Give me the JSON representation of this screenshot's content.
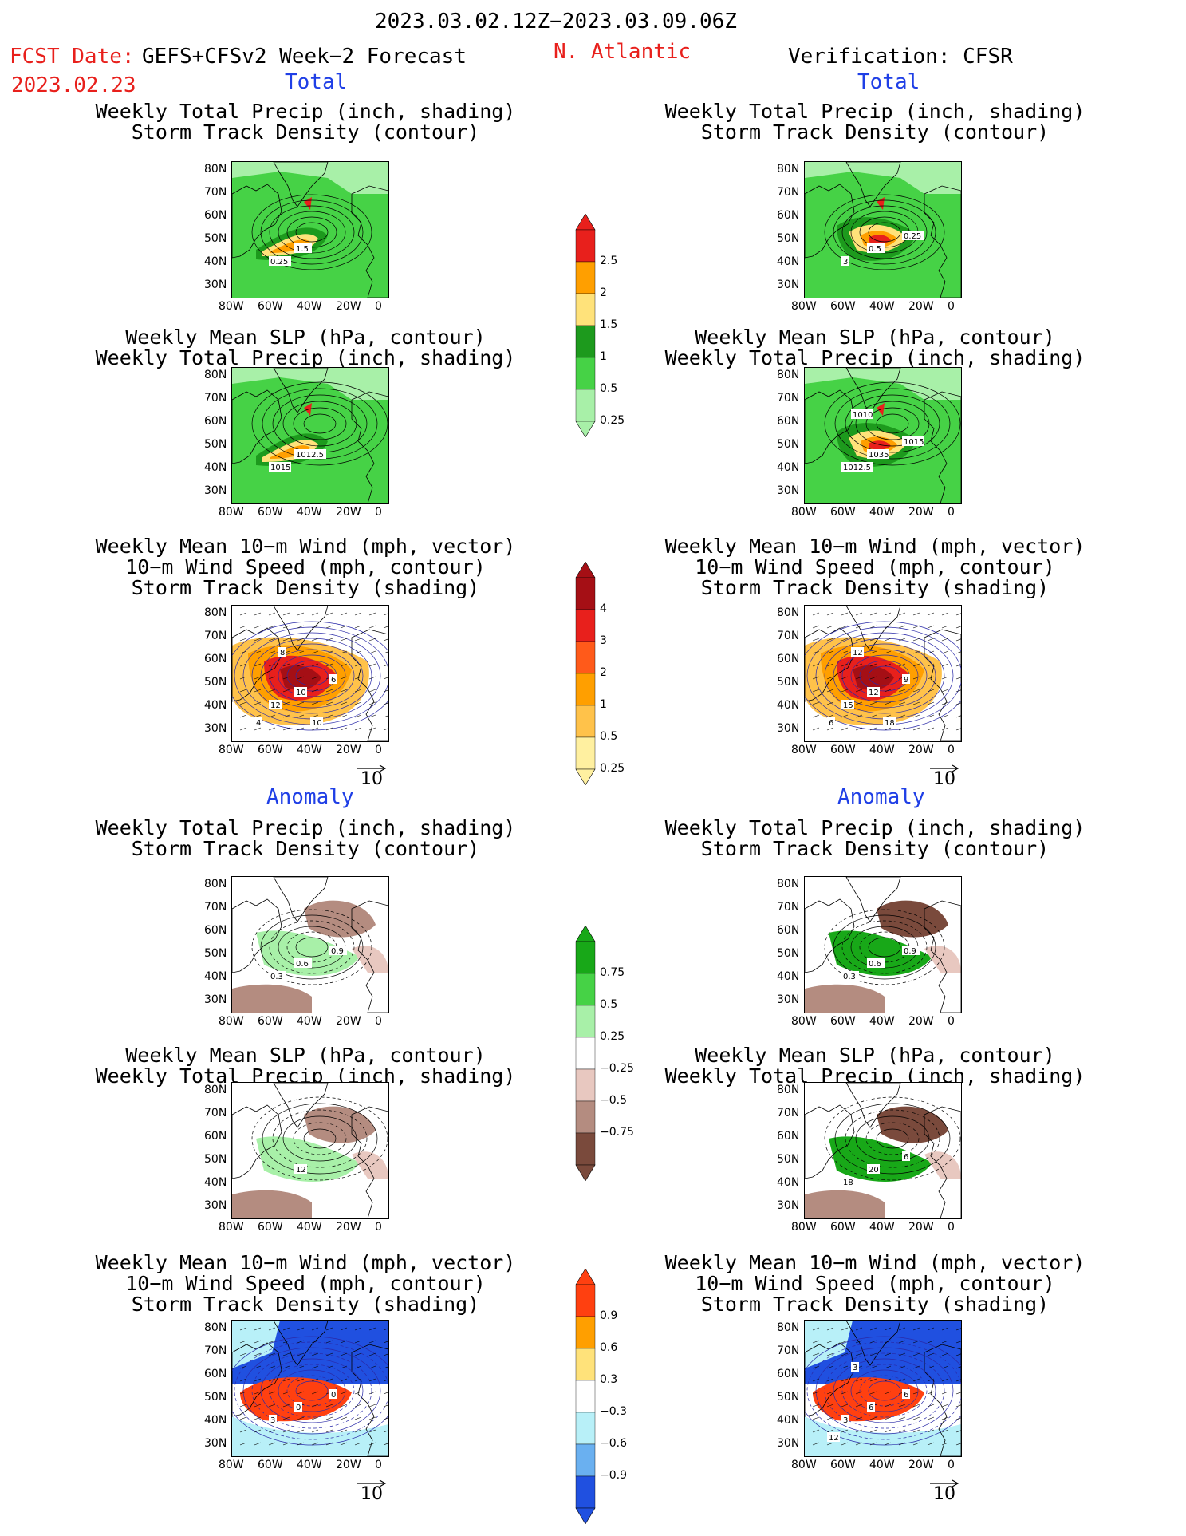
{
  "header": {
    "period": "2023.03.02.12Z−2023.03.09.06Z",
    "fcst_label": "FCST Date:",
    "fcst_model": "GEFS+CFSv2 Week−2 Forecast",
    "fcst_date": "2023.02.23",
    "region": "N. Atlantic",
    "verification": "Verification: CFSR"
  },
  "sections": {
    "total": "Total",
    "anomaly": "Anomaly"
  },
  "axes": {
    "lat_labels": [
      "80N",
      "70N",
      "60N",
      "50N",
      "40N",
      "30N"
    ],
    "lon_labels": [
      "80W",
      "60W",
      "40W",
      "20W",
      "0"
    ]
  },
  "vector_scale": "10",
  "panels": [
    {
      "id": "fcst-total-precip",
      "title": [
        "Weekly Total Precip (inch, shading)",
        "Storm Track Density (contour)"
      ],
      "labels": [
        "1.5",
        "0.25"
      ]
    },
    {
      "id": "verif-total-precip",
      "title": [
        "Weekly Total Precip (inch, shading)",
        "Storm Track Density (contour)"
      ],
      "labels": [
        "0.5",
        "3",
        "0.25"
      ]
    },
    {
      "id": "fcst-total-slp",
      "title": [
        "Weekly Mean SLP (hPa, contour)",
        "Weekly Total Precip (inch, shading)"
      ],
      "labels": [
        "1012.5",
        "1015"
      ]
    },
    {
      "id": "verif-total-slp",
      "title": [
        "Weekly Mean SLP (hPa, contour)",
        "Weekly Total Precip (inch, shading)"
      ],
      "labels": [
        "1035",
        "1012.5",
        "1015",
        "1010"
      ]
    },
    {
      "id": "fcst-total-wind",
      "title": [
        "Weekly Mean 10−m Wind (mph, vector)",
        "10−m Wind Speed (mph, contour)",
        "Storm Track Density (shading)"
      ],
      "labels": [
        "10",
        "12",
        "6",
        "8",
        "4",
        "10"
      ]
    },
    {
      "id": "verif-total-wind",
      "title": [
        "Weekly Mean 10−m Wind (mph, vector)",
        "10−m Wind Speed (mph, contour)",
        "Storm Track Density (shading)"
      ],
      "labels": [
        "12",
        "15",
        "9",
        "12",
        "6",
        "18"
      ]
    },
    {
      "id": "fcst-anom-precip",
      "title": [
        "Weekly Total Precip (inch, shading)",
        "Storm Track Density (contour)"
      ],
      "labels": [
        "0.6",
        "0.3",
        "0.9"
      ]
    },
    {
      "id": "verif-anom-precip",
      "title": [
        "Weekly Total Precip (inch, shading)",
        "Storm Track Density (contour)"
      ],
      "labels": [
        "0.6",
        "0.3",
        "0.9"
      ]
    },
    {
      "id": "fcst-anom-slp",
      "title": [
        "Weekly Mean SLP (hPa, contour)",
        "Weekly Total Precip (inch, shading)"
      ],
      "labels": [
        "12"
      ]
    },
    {
      "id": "verif-anom-slp",
      "title": [
        "Weekly Mean SLP (hPa, contour)",
        "Weekly Total Precip (inch, shading)"
      ],
      "labels": [
        "20",
        "18",
        "6"
      ]
    },
    {
      "id": "fcst-anom-wind",
      "title": [
        "Weekly Mean 10−m Wind (mph, vector)",
        "10−m Wind Speed (mph, contour)",
        "Storm Track Density (shading)"
      ],
      "labels": [
        "0",
        "3",
        "0"
      ]
    },
    {
      "id": "verif-anom-wind",
      "title": [
        "Weekly Mean 10−m Wind (mph, vector)",
        "10−m Wind Speed (mph, contour)",
        "Storm Track Density (shading)"
      ],
      "labels": [
        "6",
        "3",
        "6",
        "3",
        "12"
      ]
    }
  ],
  "colorbars": {
    "total_precip": {
      "ticks": [
        "2.5",
        "2",
        "1.5",
        "1",
        "0.5",
        "0.25"
      ],
      "colors": [
        "#e8201c",
        "#ff9f00",
        "#ffe27a",
        "#1d9a1d",
        "#46d246",
        "#a8f0a8"
      ]
    },
    "total_storm": {
      "ticks": [
        "4",
        "3",
        "2",
        "1",
        "0.5",
        "0.25"
      ],
      "colors": [
        "#a50f15",
        "#e8201c",
        "#ff5a1a",
        "#ff9f00",
        "#ffc24a",
        "#fff0a0"
      ]
    },
    "anom_precip": {
      "ticks": [
        "0.75",
        "0.5",
        "0.25",
        "−0.25",
        "−0.5",
        "−0.75"
      ],
      "colors": [
        "#18a818",
        "#46d246",
        "#a8f0a8",
        "#ffffff",
        "#e8c8c0",
        "#b48c80",
        "#7a4a3c"
      ]
    },
    "anom_storm": {
      "ticks": [
        "0.9",
        "0.6",
        "0.3",
        "−0.3",
        "−0.6",
        "−0.9"
      ],
      "colors": [
        "#ff4010",
        "#ff9f00",
        "#ffe27a",
        "#ffffff",
        "#b8f0f8",
        "#6ab0f0",
        "#2050e0"
      ]
    }
  }
}
